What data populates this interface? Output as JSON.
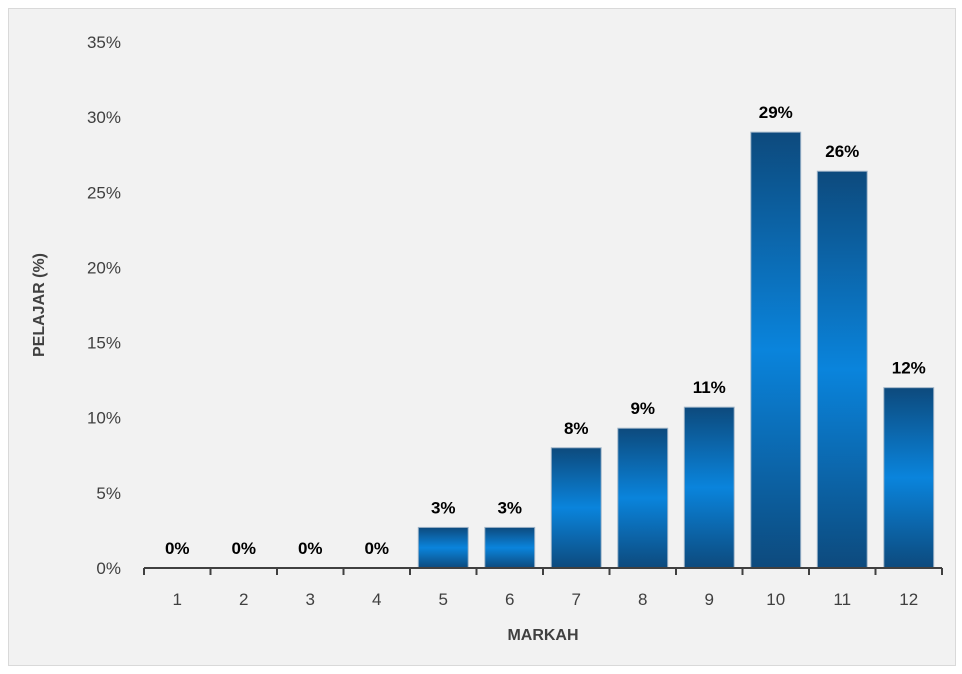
{
  "chart_data": {
    "type": "bar",
    "title": "",
    "xlabel": "MARKAH",
    "ylabel": "PELAJAR (%)",
    "categories": [
      "1",
      "2",
      "3",
      "4",
      "5",
      "6",
      "7",
      "8",
      "9",
      "10",
      "11",
      "12"
    ],
    "values": [
      0,
      0,
      0,
      0,
      2.7,
      2.7,
      8,
      9.3,
      10.7,
      29,
      26.4,
      12
    ],
    "data_labels": [
      "0%",
      "0%",
      "0%",
      "0%",
      "3%",
      "3%",
      "8%",
      "9%",
      "11%",
      "29%",
      "26%",
      "12%"
    ],
    "ylim": [
      0,
      35
    ],
    "y_ticks": [
      "0%",
      "5%",
      "10%",
      "15%",
      "20%",
      "25%",
      "30%",
      "35%"
    ],
    "y_tick_values": [
      0,
      5,
      10,
      15,
      20,
      25,
      30,
      35
    ],
    "grid": false,
    "legend": "none",
    "colors": {
      "bar_light": "#0a84dc",
      "bar_dark": "#0d4a7d",
      "bar_edge": "#9fb4c8",
      "background": "#f2f2f2",
      "axis": "#404040"
    }
  }
}
